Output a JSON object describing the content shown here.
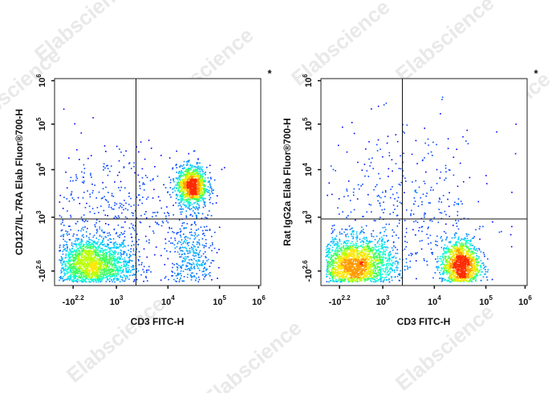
{
  "watermark_text": "Elabscience",
  "chart_data": [
    {
      "type": "scatter",
      "render": "density-dot-plot",
      "marker": "*",
      "xlabel": "CD3 FITC-H",
      "ylabel": "CD127/IL-7RA Elab Fluor®700-H",
      "x_scale": "biexponential",
      "y_scale": "biexponential",
      "x_ticks": [
        {
          "base": "-10",
          "exp": "2.2"
        },
        {
          "base": "10",
          "exp": "3"
        },
        {
          "base": "10",
          "exp": "4"
        },
        {
          "base": "10",
          "exp": "5"
        },
        {
          "base": "10",
          "exp": "6"
        }
      ],
      "y_ticks": [
        {
          "base": "-10",
          "exp": "2.6"
        },
        {
          "base": "10",
          "exp": "3"
        },
        {
          "base": "10",
          "exp": "4"
        },
        {
          "base": "10",
          "exp": "5"
        },
        {
          "base": "10",
          "exp": "6"
        }
      ],
      "quadrant_gate": {
        "x": 2500,
        "y": 700
      },
      "populations": [
        {
          "x_log10": 2.45,
          "y_log10": 1.8,
          "x_spread": 0.42,
          "y_spread": 0.32,
          "share": 0.5
        },
        {
          "x_log10": 4.55,
          "y_log10": 3.6,
          "x_spread": 0.16,
          "y_spread": 0.22,
          "share": 0.28
        },
        {
          "x_log10": 4.55,
          "y_log10": 1.9,
          "x_spread": 0.22,
          "y_spread": 0.55,
          "share": 0.1
        },
        {
          "x_log10": 3.0,
          "y_log10": 2.9,
          "x_spread": 0.9,
          "y_spread": 0.8,
          "share": 0.12
        }
      ]
    },
    {
      "type": "scatter",
      "render": "density-dot-plot",
      "marker": "*",
      "xlabel": "CD3 FITC-H",
      "ylabel": "Rat IgG2a Elab Fluor®700-H",
      "x_scale": "biexponential",
      "y_scale": "biexponential",
      "x_ticks": [
        {
          "base": "-10",
          "exp": "2.2"
        },
        {
          "base": "10",
          "exp": "3"
        },
        {
          "base": "10",
          "exp": "4"
        },
        {
          "base": "10",
          "exp": "5"
        },
        {
          "base": "10",
          "exp": "6"
        }
      ],
      "y_ticks": [
        {
          "base": "-10",
          "exp": "2.6"
        },
        {
          "base": "10",
          "exp": "3"
        },
        {
          "base": "10",
          "exp": "4"
        },
        {
          "base": "10",
          "exp": "5"
        },
        {
          "base": "10",
          "exp": "6"
        }
      ],
      "quadrant_gate": {
        "x": 2500,
        "y": 700
      },
      "populations": [
        {
          "x_log10": 2.4,
          "y_log10": 1.8,
          "x_spread": 0.42,
          "y_spread": 0.32,
          "share": 0.55
        },
        {
          "x_log10": 4.6,
          "y_log10": 1.8,
          "x_spread": 0.2,
          "y_spread": 0.3,
          "share": 0.35
        },
        {
          "x_log10": 3.4,
          "y_log10": 3.1,
          "x_spread": 1.0,
          "y_spread": 0.9,
          "share": 0.1
        }
      ]
    }
  ]
}
